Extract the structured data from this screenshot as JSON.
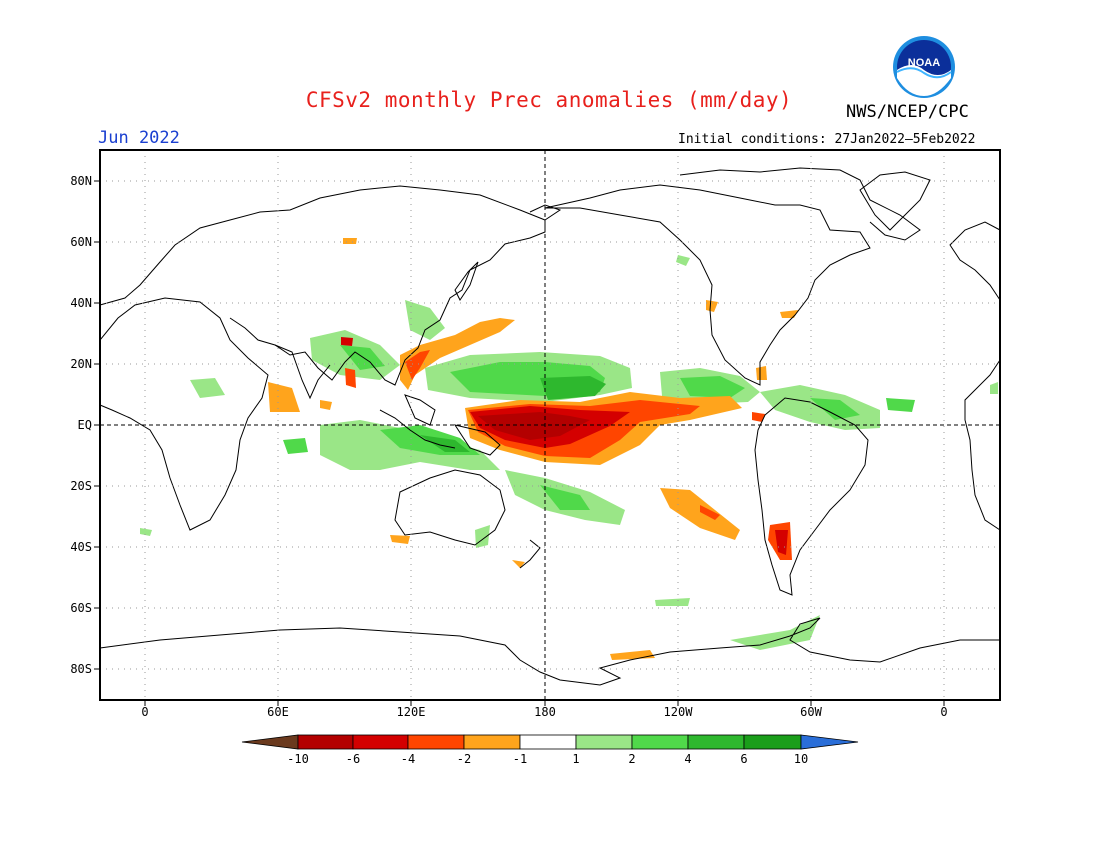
{
  "header": {
    "title": "CFSv2 monthly Prec anomalies (mm/day)",
    "org": "NWS/NCEP/CPC",
    "logo_text": "NOAA",
    "month": "Jun 2022",
    "initial_conditions": "Initial conditions: 27Jan2022—5Feb2022"
  },
  "map": {
    "projection": "cylindrical equidistant",
    "lat_labels": [
      "80N",
      "60N",
      "40N",
      "20N",
      "EQ",
      "20S",
      "40S",
      "60S",
      "80S"
    ],
    "lon_labels": [
      "0",
      "60E",
      "120E",
      "180",
      "120W",
      "60W",
      "0"
    ],
    "grid": "dotted",
    "reference_lines": [
      "EQ",
      "180"
    ]
  },
  "legend": {
    "labels": [
      "-10",
      "-6",
      "-4",
      "-2",
      "-1",
      "1",
      "2",
      "4",
      "6",
      "10"
    ],
    "colors": [
      "#6b3a1e",
      "#b30000",
      "#d40000",
      "#ff4500",
      "#ffa41c",
      "#ffffff",
      "#9ae687",
      "#50d94a",
      "#2eb82e",
      "#1a9e1a",
      "#2a6ed8"
    ]
  }
}
